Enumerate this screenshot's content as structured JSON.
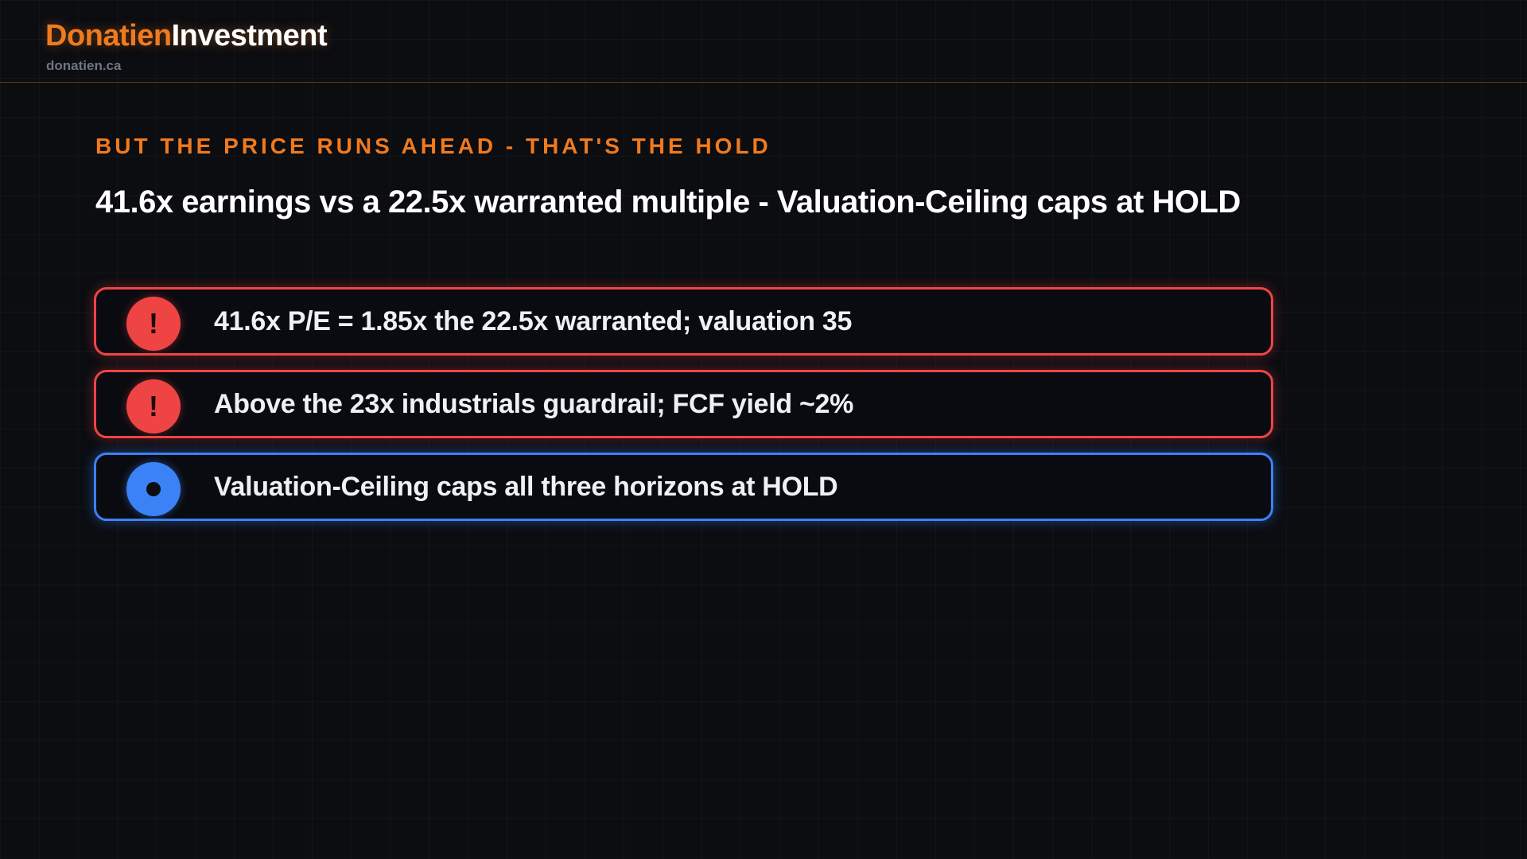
{
  "header": {
    "brand_primary": "Donatien",
    "brand_secondary": "Investment",
    "domain": "donatien.ca"
  },
  "slide": {
    "eyebrow": "BUT THE PRICE RUNS AHEAD - THAT'S THE HOLD",
    "headline": "41.6x earnings vs a 22.5x warranted multiple - Valuation-Ceiling caps at HOLD",
    "cards": [
      {
        "type": "warning",
        "icon": "exclamation-icon",
        "badge": "!",
        "text": "41.6x P/E = 1.85x the 22.5x warranted; valuation 35"
      },
      {
        "type": "warning",
        "icon": "exclamation-icon",
        "badge": "!",
        "text": "Above the 23x industrials guardrail; FCF yield ~2%"
      },
      {
        "type": "info",
        "icon": "dot-icon",
        "badge": "",
        "text": "Valuation-Ceiling caps all three horizons at HOLD"
      }
    ]
  },
  "colors": {
    "accent": "#f07a1e",
    "warning": "#ef4444",
    "info": "#3b82f6",
    "background": "#0b0d11"
  }
}
